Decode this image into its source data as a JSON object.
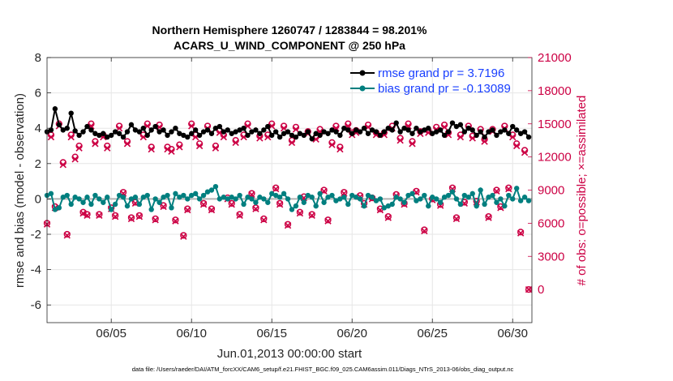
{
  "chart_data": {
    "type": "line",
    "title": [
      "Northern Hemisphere 1260747 / 1283844 = 98.201%",
      "ACARS_U_WIND_COMPONENT @ 250 hPa"
    ],
    "xlabel": "Jun.01,2013 00:00:00 start",
    "ylabel_left": "rmse and bias (model - observation)",
    "ylabel_right": "# of obs: o=possible; ×=assimilated",
    "xlim": [
      1,
      31.2
    ],
    "ylim_left": [
      -7,
      8
    ],
    "ylim_right": [
      -3000,
      21000
    ],
    "x_ticks": [
      5,
      10,
      15,
      20,
      25,
      30
    ],
    "x_tick_labels": [
      "06/05",
      "06/10",
      "06/15",
      "06/20",
      "06/25",
      "06/30"
    ],
    "y_ticks_left": [
      8,
      6,
      4,
      2,
      0,
      -2,
      -4,
      -6
    ],
    "y_ticks_right": [
      21000,
      18000,
      15000,
      12000,
      9000,
      6000,
      3000,
      0
    ],
    "legend": [
      {
        "label": "rmse grand pr = 3.7196",
        "color": "#000000"
      },
      {
        "label": "bias grand pr = -0.13089",
        "color": "#007f7f"
      }
    ],
    "colors": {
      "rmse": "#000000",
      "bias": "#007f7f",
      "obs": "#cc0044",
      "text_blue": "#1a40ff",
      "right_axis": "#cc0044",
      "zero_line": "#b3b3b3"
    },
    "series": [
      {
        "name": "rmse",
        "axis": "left",
        "x": [
          1.0,
          1.25,
          1.5,
          1.75,
          2.0,
          2.25,
          2.5,
          2.75,
          3.0,
          3.25,
          3.5,
          3.75,
          4.0,
          4.25,
          4.5,
          4.75,
          5.0,
          5.25,
          5.5,
          5.75,
          6.0,
          6.25,
          6.5,
          6.75,
          7.0,
          7.25,
          7.5,
          7.75,
          8.0,
          8.25,
          8.5,
          8.75,
          9.0,
          9.25,
          9.5,
          9.75,
          10.0,
          10.25,
          10.5,
          10.75,
          11.0,
          11.25,
          11.5,
          11.75,
          12.0,
          12.25,
          12.5,
          12.75,
          13.0,
          13.25,
          13.5,
          13.75,
          14.0,
          14.25,
          14.5,
          14.75,
          15.0,
          15.25,
          15.5,
          15.75,
          16.0,
          16.25,
          16.5,
          16.75,
          17.0,
          17.25,
          17.5,
          17.75,
          18.0,
          18.25,
          18.5,
          18.75,
          19.0,
          19.25,
          19.5,
          19.75,
          20.0,
          20.25,
          20.5,
          20.75,
          21.0,
          21.25,
          21.5,
          21.75,
          22.0,
          22.25,
          22.5,
          22.75,
          23.0,
          23.25,
          23.5,
          23.75,
          24.0,
          24.25,
          24.5,
          24.75,
          25.0,
          25.25,
          25.5,
          25.75,
          26.0,
          26.25,
          26.5,
          26.75,
          27.0,
          27.25,
          27.5,
          27.75,
          28.0,
          28.25,
          28.5,
          28.75,
          29.0,
          29.25,
          29.5,
          29.75,
          30.0,
          30.25,
          30.5,
          30.75,
          31.0
        ],
        "values": [
          3.8,
          3.9,
          5.1,
          4.2,
          3.9,
          4.0,
          4.85,
          3.85,
          3.6,
          3.8,
          4.1,
          3.9,
          3.7,
          3.6,
          3.7,
          3.5,
          3.6,
          3.8,
          3.7,
          3.5,
          3.8,
          4.2,
          3.9,
          3.8,
          4.0,
          3.6,
          3.9,
          4.1,
          3.8,
          3.9,
          3.6,
          3.8,
          4.0,
          3.7,
          3.6,
          3.5,
          3.7,
          3.9,
          3.6,
          3.8,
          3.9,
          3.7,
          4.0,
          4.1,
          3.8,
          3.9,
          3.7,
          3.8,
          3.9,
          4.0,
          3.6,
          3.8,
          3.9,
          3.7,
          3.9,
          4.1,
          3.6,
          3.8,
          3.5,
          3.7,
          3.8,
          3.6,
          3.5,
          3.7,
          3.6,
          3.8,
          3.4,
          3.7,
          3.6,
          3.8,
          3.7,
          3.9,
          3.8,
          3.6,
          4.0,
          3.9,
          3.7,
          3.9,
          3.8,
          4.0,
          3.7,
          3.9,
          3.8,
          3.6,
          3.8,
          4.0,
          3.9,
          4.3,
          3.8,
          4.0,
          3.9,
          3.7,
          4.0,
          3.8,
          3.9,
          4.0,
          3.7,
          3.8,
          3.9,
          3.6,
          3.8,
          4.3,
          4.1,
          4.2,
          3.8,
          4.0,
          3.9,
          3.6,
          3.8,
          3.5,
          3.8,
          3.9,
          3.6,
          3.8,
          3.9,
          3.7,
          4.1,
          3.9,
          3.7,
          3.8,
          3.5
        ]
      },
      {
        "name": "bias",
        "axis": "left",
        "x": [
          1.0,
          1.25,
          1.5,
          1.75,
          2.0,
          2.25,
          2.5,
          2.75,
          3.0,
          3.25,
          3.5,
          3.75,
          4.0,
          4.25,
          4.5,
          4.75,
          5.0,
          5.25,
          5.5,
          5.75,
          6.0,
          6.25,
          6.5,
          6.75,
          7.0,
          7.25,
          7.5,
          7.75,
          8.0,
          8.25,
          8.5,
          8.75,
          9.0,
          9.25,
          9.5,
          9.75,
          10.0,
          10.25,
          10.5,
          10.75,
          11.0,
          11.25,
          11.5,
          11.75,
          12.0,
          12.25,
          12.5,
          12.75,
          13.0,
          13.25,
          13.5,
          13.75,
          14.0,
          14.25,
          14.5,
          14.75,
          15.0,
          15.25,
          15.5,
          15.75,
          16.0,
          16.25,
          16.5,
          16.75,
          17.0,
          17.25,
          17.5,
          17.75,
          18.0,
          18.25,
          18.5,
          18.75,
          19.0,
          19.25,
          19.5,
          19.75,
          20.0,
          20.25,
          20.5,
          20.75,
          21.0,
          21.25,
          21.5,
          21.75,
          22.0,
          22.25,
          22.5,
          22.75,
          23.0,
          23.25,
          23.5,
          23.75,
          24.0,
          24.25,
          24.5,
          24.75,
          25.0,
          25.25,
          25.5,
          25.75,
          26.0,
          26.25,
          26.5,
          26.75,
          27.0,
          27.25,
          27.5,
          27.75,
          28.0,
          28.25,
          28.5,
          28.75,
          29.0,
          29.25,
          29.5,
          29.75,
          30.0,
          30.25,
          30.5,
          30.75,
          31.0
        ],
        "values": [
          0.2,
          0.3,
          -0.6,
          -0.5,
          0.1,
          0.2,
          -0.3,
          0.1,
          0.0,
          -0.2,
          0.1,
          -0.3,
          0.2,
          0.0,
          -0.2,
          0.1,
          -0.6,
          -0.3,
          0.2,
          0.1,
          -0.4,
          0.0,
          0.1,
          -0.3,
          0.1,
          0.2,
          -0.6,
          0.0,
          -0.2,
          0.1,
          0.2,
          -0.5,
          0.3,
          0.1,
          0.2,
          0.0,
          0.2,
          0.3,
          0.0,
          0.2,
          0.4,
          0.5,
          0.7,
          0.0,
          0.1,
          0.0,
          0.1,
          0.0,
          0.2,
          -0.3,
          0.1,
          0.0,
          -0.2,
          0.1,
          0.0,
          -0.2,
          0.3,
          0.2,
          0.1,
          0.3,
          0.0,
          -0.6,
          -0.4,
          0.1,
          -0.2,
          0.2,
          0.1,
          -0.4,
          0.3,
          -0.2,
          0.1,
          0.2,
          -0.1,
          0.0,
          0.1,
          -0.3,
          0.2,
          0.1,
          0.0,
          -0.4,
          0.2,
          0.1,
          -0.1,
          0.0,
          -0.5,
          -0.4,
          -0.3,
          0.1,
          0.0,
          -0.2,
          0.2,
          0.3,
          -0.1,
          0.0,
          0.2,
          -0.4,
          0.1,
          0.0,
          -0.2,
          0.1,
          0.2,
          0.4,
          0.0,
          -0.3,
          0.2,
          0.1,
          0.3,
          -0.4,
          0.5,
          -0.3,
          0.1,
          0.2,
          -0.2,
          0.0,
          -0.4,
          0.2,
          0.0,
          0.6,
          -0.1,
          0.1,
          -0.1
        ]
      },
      {
        "name": "obs_possible",
        "axis": "right",
        "x": [
          1.0,
          1.25,
          1.5,
          1.75,
          2.0,
          2.25,
          2.5,
          2.75,
          3.0,
          3.25,
          3.5,
          3.75,
          4.0,
          4.25,
          4.5,
          4.75,
          5.0,
          5.25,
          5.5,
          5.75,
          6.0,
          6.25,
          6.5,
          6.75,
          7.0,
          7.25,
          7.5,
          7.75,
          8.0,
          8.25,
          8.5,
          8.75,
          9.0,
          9.25,
          9.5,
          9.75,
          10.0,
          10.25,
          10.5,
          10.75,
          11.0,
          11.25,
          11.5,
          11.75,
          12.0,
          12.25,
          12.5,
          12.75,
          13.0,
          13.25,
          13.5,
          13.75,
          14.0,
          14.25,
          14.5,
          14.75,
          15.0,
          15.25,
          15.5,
          15.75,
          16.0,
          16.25,
          16.5,
          16.75,
          17.0,
          17.25,
          17.5,
          17.75,
          18.0,
          18.25,
          18.5,
          18.75,
          19.0,
          19.25,
          19.5,
          19.75,
          20.0,
          20.25,
          20.5,
          20.75,
          21.0,
          21.25,
          21.5,
          21.75,
          22.0,
          22.25,
          22.5,
          22.75,
          23.0,
          23.25,
          23.5,
          23.75,
          24.0,
          24.25,
          24.5,
          24.75,
          25.0,
          25.25,
          25.5,
          25.75,
          26.0,
          26.25,
          26.5,
          26.75,
          27.0,
          27.25,
          27.5,
          27.75,
          28.0,
          28.25,
          28.5,
          28.75,
          29.0,
          29.25,
          29.5,
          29.75,
          30.0,
          30.25,
          30.5,
          30.75,
          31.0
        ],
        "values": [
          6000,
          14000,
          7500,
          15000,
          11500,
          5000,
          14000,
          12000,
          13000,
          7000,
          6800,
          15000,
          13400,
          6800,
          14000,
          13000,
          7400,
          6700,
          14800,
          8800,
          13400,
          6500,
          7900,
          6700,
          14000,
          15000,
          12900,
          6400,
          14900,
          7600,
          12900,
          12700,
          6300,
          13100,
          4900,
          7300,
          15000,
          14000,
          13200,
          7800,
          14800,
          7300,
          13000,
          14400,
          14000,
          8300,
          7800,
          13500,
          6800,
          14000,
          15000,
          8700,
          7400,
          13900,
          6400,
          14000,
          15000,
          9200,
          7800,
          14800,
          5900,
          13500,
          14700,
          7000,
          8400,
          14300,
          6800,
          13800,
          14500,
          9000,
          6300,
          13300,
          14800,
          12900,
          8800,
          15000,
          14200,
          14400,
          8500,
          7800,
          14900,
          8300,
          14200,
          7300,
          14200,
          6600,
          14800,
          8600,
          13700,
          7800,
          15000,
          13400,
          8900,
          14300,
          5400,
          14400,
          8200,
          14700,
          7700,
          14900,
          14200,
          9200,
          6500,
          14000,
          7900,
          14800,
          13900,
          8000,
          14500,
          13600,
          6600,
          14500,
          9000,
          7500,
          14800,
          9200,
          14000,
          13200,
          5200,
          12600,
          0
        ]
      },
      {
        "name": "obs_assimilated",
        "axis": "right",
        "x": [
          1.0,
          1.25,
          1.5,
          1.75,
          2.0,
          2.25,
          2.5,
          2.75,
          3.0,
          3.25,
          3.5,
          3.75,
          4.0,
          4.25,
          4.5,
          4.75,
          5.0,
          5.25,
          5.5,
          5.75,
          6.0,
          6.25,
          6.5,
          6.75,
          7.0,
          7.25,
          7.5,
          7.75,
          8.0,
          8.25,
          8.5,
          8.75,
          9.0,
          9.25,
          9.5,
          9.75,
          10.0,
          10.25,
          10.5,
          10.75,
          11.0,
          11.25,
          11.5,
          11.75,
          12.0,
          12.25,
          12.5,
          12.75,
          13.0,
          13.25,
          13.5,
          13.75,
          14.0,
          14.25,
          14.5,
          14.75,
          15.0,
          15.25,
          15.5,
          15.75,
          16.0,
          16.25,
          16.5,
          16.75,
          17.0,
          17.25,
          17.5,
          17.75,
          18.0,
          18.25,
          18.5,
          18.75,
          19.0,
          19.25,
          19.5,
          19.75,
          20.0,
          20.25,
          20.5,
          20.75,
          21.0,
          21.25,
          21.5,
          21.75,
          22.0,
          22.25,
          22.5,
          22.75,
          23.0,
          23.25,
          23.5,
          23.75,
          24.0,
          24.25,
          24.5,
          24.75,
          25.0,
          25.25,
          25.5,
          25.75,
          26.0,
          26.25,
          26.5,
          26.75,
          27.0,
          27.25,
          27.5,
          27.75,
          28.0,
          28.25,
          28.5,
          28.75,
          29.0,
          29.25,
          29.5,
          29.75,
          30.0,
          30.25,
          30.5,
          30.75,
          31.0
        ],
        "values": [
          5900,
          13800,
          7400,
          14800,
          11300,
          4900,
          13800,
          11800,
          12800,
          6900,
          6700,
          14800,
          13200,
          6700,
          13800,
          12800,
          7300,
          6600,
          14600,
          8700,
          13200,
          6400,
          7800,
          6600,
          13800,
          14800,
          12700,
          6300,
          14700,
          7500,
          12700,
          12500,
          6200,
          12900,
          4800,
          7200,
          14800,
          13800,
          13000,
          7700,
          14600,
          7200,
          12800,
          14200,
          13800,
          8200,
          7700,
          13300,
          6700,
          13800,
          14800,
          8600,
          7300,
          13700,
          6300,
          13800,
          14800,
          9100,
          7700,
          14600,
          5800,
          13300,
          14500,
          6900,
          8300,
          14100,
          6700,
          13600,
          14300,
          8900,
          6200,
          13100,
          14600,
          12700,
          8700,
          14800,
          14000,
          14200,
          8400,
          7700,
          14700,
          8200,
          14000,
          7200,
          14000,
          6500,
          14600,
          8500,
          13500,
          7700,
          14800,
          13200,
          8800,
          14100,
          5300,
          14200,
          8100,
          14500,
          7600,
          14700,
          14000,
          9100,
          6400,
          13800,
          7800,
          14600,
          13700,
          7900,
          14300,
          13400,
          6500,
          14300,
          8900,
          7400,
          14600,
          9100,
          13800,
          13000,
          5100,
          12400,
          0
        ]
      }
    ]
  },
  "footer": "data file: /Users/raeder/DAI/ATM_forcXX/CAM6_setup/f.e21.FHIST_BGC.f09_025.CAM6assim.011/Diags_NTrS_2013-06/obs_diag_output.nc"
}
